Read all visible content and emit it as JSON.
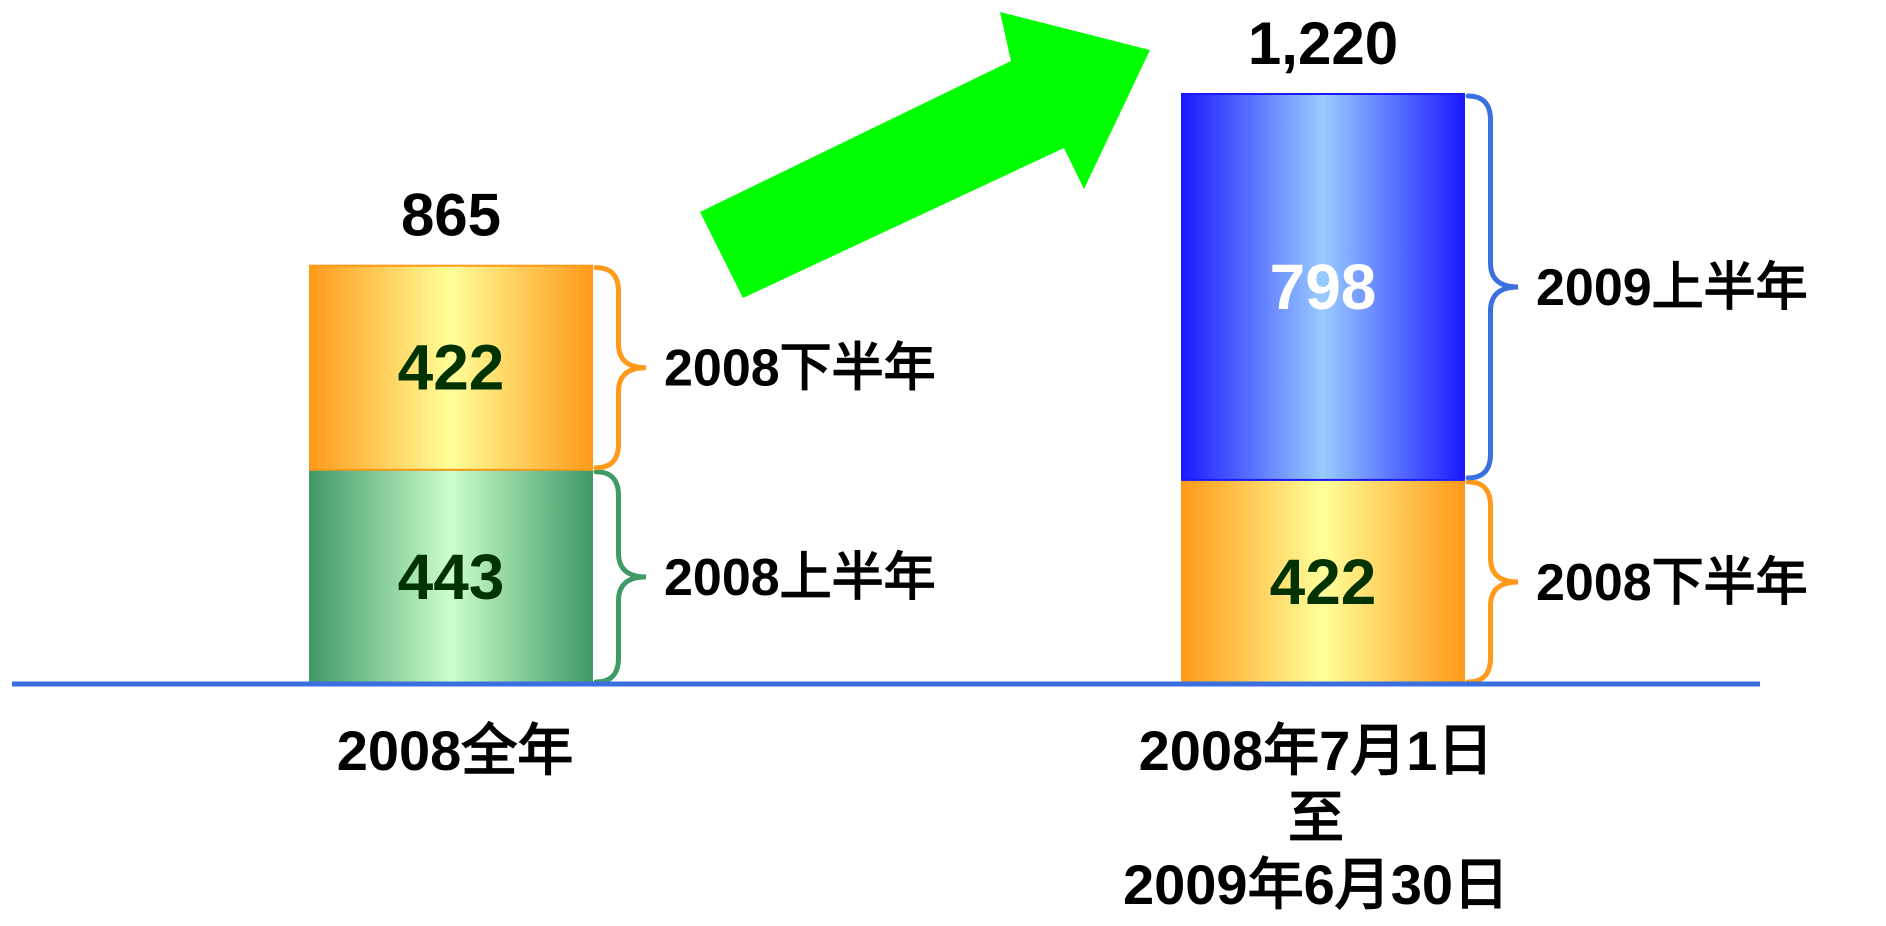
{
  "chart_data": {
    "type": "bar",
    "stacked": true,
    "categories": [
      {
        "lines": [
          "2008全年"
        ]
      },
      {
        "lines": [
          "2008年7月1日",
          "至",
          "2009年6月30日"
        ]
      }
    ],
    "bars": [
      {
        "total_label": "865",
        "segments": [
          {
            "value": 443,
            "label": "443",
            "brace_label": "2008上半年",
            "style": "green"
          },
          {
            "value": 422,
            "label": "422",
            "brace_label": "2008下半年",
            "style": "orange"
          }
        ]
      },
      {
        "total_label": "1,220",
        "segments": [
          {
            "value": 422,
            "label": "422",
            "brace_label": "2008下半年",
            "style": "orange"
          },
          {
            "value": 798,
            "label": "798",
            "brace_label": "2009上半年",
            "style": "blue"
          }
        ]
      }
    ],
    "colors": {
      "green_edge": "#3f9a66",
      "green_center": "#ccffcc",
      "orange_edge": "#ff9a1a",
      "orange_center": "#ffff99",
      "blue_edge": "#1a1aff",
      "blue_center": "#99ccff",
      "arrow": "#00ff00",
      "baseline": "#3a6fe0",
      "brace_green": "#3f9a66",
      "brace_orange": "#ff9a1a",
      "brace_blue": "#3a6fe0",
      "value_dark": "#003300",
      "value_light": "#ffffff"
    },
    "ylim": [
      0,
      1220
    ],
    "grid": false,
    "legend": "none",
    "arrow_icon": "growth-arrow-icon"
  }
}
